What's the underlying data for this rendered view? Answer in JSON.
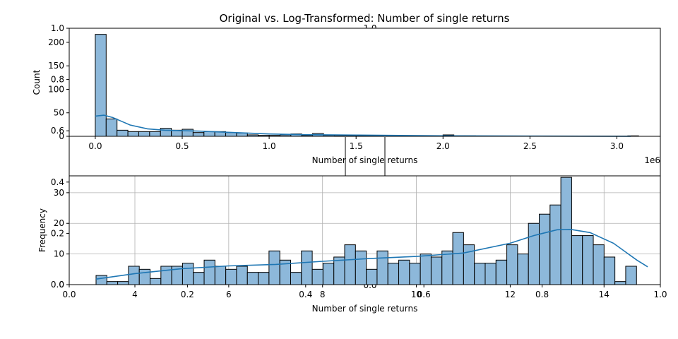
{
  "figure": {
    "suptitle": "Original vs. Log-Transformed: Number of single returns"
  },
  "chart_data": [
    {
      "type": "bar",
      "subtype": "histogram",
      "title": "",
      "xlabel": "Number of single returns",
      "ylabel": "Count",
      "x_offset_label": "1e6",
      "xlim": [
        -0.15,
        3.25
      ],
      "ylim": [
        0,
        230
      ],
      "xticks": [
        0.0,
        0.5,
        1.0,
        1.5,
        2.0,
        2.5,
        3.0
      ],
      "xtick_labels": [
        "0.0",
        "0.5",
        "1.0",
        "1.5",
        "2.0",
        "2.5",
        "3.0"
      ],
      "yticks": [
        0,
        50,
        100,
        150,
        200
      ],
      "ytick_labels": [
        "0",
        "50",
        "100",
        "150",
        "200"
      ],
      "bin_start": 0.0,
      "bin_width": 0.0625,
      "counts": [
        217,
        37,
        13,
        10,
        10,
        10,
        17,
        13,
        15,
        8,
        10,
        10,
        8,
        7,
        3,
        2,
        2,
        3,
        5,
        2,
        6,
        2,
        1,
        1,
        1,
        1,
        1,
        1,
        1,
        1,
        1,
        1,
        3,
        1,
        1,
        0,
        0,
        0,
        0,
        0,
        0,
        0,
        0,
        0,
        0,
        0,
        0,
        0,
        0,
        1
      ],
      "kde": {
        "x": [
          0.0,
          0.05,
          0.1,
          0.15,
          0.2,
          0.3,
          0.4,
          0.5,
          0.6,
          0.8,
          1.0,
          1.2,
          1.5,
          2.0,
          2.5,
          3.08
        ],
        "y": [
          43,
          45,
          40,
          32,
          24,
          16,
          13,
          12,
          11,
          8,
          5,
          3.5,
          2.5,
          1,
          0.5,
          0.2
        ]
      },
      "grid": false,
      "bar_color": "#8db8da",
      "edge_color": "#000000",
      "kde_color": "#1f77b4"
    },
    {
      "type": "bar",
      "subtype": "histogram",
      "title": "",
      "xlabel": "Number of single returns",
      "ylabel": "Frequency",
      "xlim": [
        2.6,
        15.2
      ],
      "ylim": [
        0,
        35.5
      ],
      "xticks": [
        4,
        6,
        8,
        10,
        12,
        14
      ],
      "xtick_labels": [
        "4",
        "6",
        "8",
        "10",
        "12",
        "14"
      ],
      "yticks": [
        0,
        10,
        20,
        30
      ],
      "ytick_labels": [
        "0",
        "10",
        "20",
        "30"
      ],
      "bin_start": 3.172,
      "bin_width": 0.2304,
      "counts": [
        3,
        1,
        1,
        6,
        5,
        2,
        6,
        6,
        7,
        4,
        8,
        6,
        5,
        6,
        4,
        4,
        11,
        8,
        4,
        11,
        5,
        7,
        9,
        13,
        11,
        5,
        11,
        7,
        8,
        7,
        10,
        9,
        11,
        17,
        13,
        7,
        7,
        8,
        13,
        10,
        20,
        23,
        26,
        35,
        16,
        16,
        13,
        9,
        1,
        6
      ],
      "kde": {
        "x": [
          3.17,
          4.0,
          5.0,
          6.0,
          7.0,
          8.0,
          9.0,
          10.0,
          11.0,
          12.0,
          12.5,
          13.0,
          13.3,
          13.7,
          14.2,
          14.7,
          14.93
        ],
        "y": [
          1.8,
          3.6,
          5.2,
          6.1,
          6.6,
          7.6,
          8.5,
          9.2,
          10.3,
          13.5,
          16.0,
          17.9,
          18.0,
          17.0,
          13.5,
          8.0,
          5.8
        ]
      },
      "grid": true,
      "bar_color": "#8db8da",
      "edge_color": "#000000",
      "kde_color": "#1f77b4"
    }
  ],
  "overlay_axis": {
    "xticks": [
      "0.0",
      "0.2",
      "0.4",
      "0.6",
      "0.8",
      "1.0"
    ],
    "yticks": [
      "0.0",
      "0.2",
      "0.4",
      "0.6",
      "0.8",
      "1.0"
    ]
  }
}
